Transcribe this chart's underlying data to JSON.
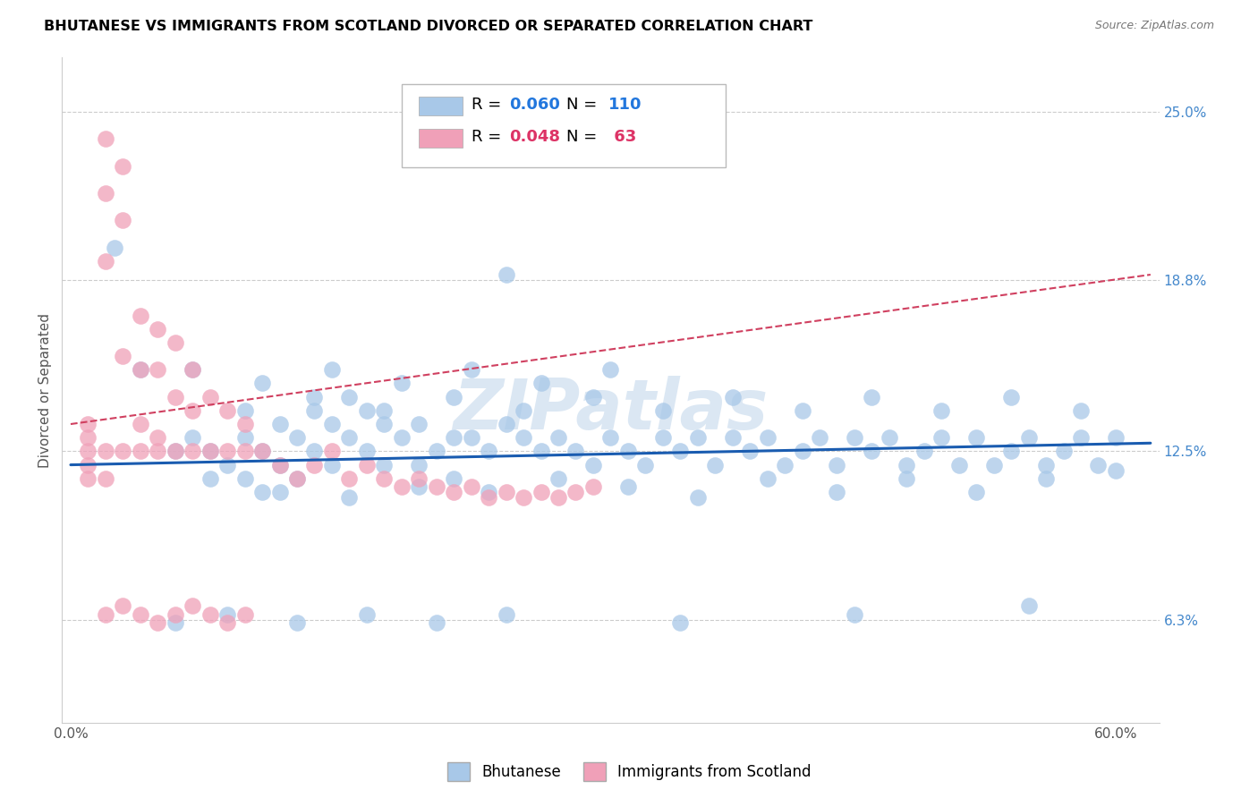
{
  "title": "BHUTANESE VS IMMIGRANTS FROM SCOTLAND DIVORCED OR SEPARATED CORRELATION CHART",
  "source": "Source: ZipAtlas.com",
  "ylabel": "Divorced or Separated",
  "legend_bhutanese": "Bhutanese",
  "legend_scotland": "Immigrants from Scotland",
  "r_bhutanese": 0.06,
  "n_bhutanese": 110,
  "r_scotland": 0.048,
  "n_scotland": 63,
  "blue_color": "#a8c8e8",
  "blue_line_color": "#1a5cb0",
  "pink_color": "#f0a0b8",
  "pink_line_color": "#d04060",
  "watermark": "ZIPatlas",
  "xlim": [
    -0.005,
    0.625
  ],
  "ylim": [
    0.025,
    0.27
  ],
  "bhutanese_x": [
    0.025,
    0.04,
    0.25,
    0.06,
    0.07,
    0.08,
    0.09,
    0.1,
    0.1,
    0.11,
    0.11,
    0.12,
    0.12,
    0.13,
    0.13,
    0.14,
    0.14,
    0.15,
    0.15,
    0.16,
    0.16,
    0.17,
    0.17,
    0.18,
    0.18,
    0.19,
    0.2,
    0.2,
    0.21,
    0.22,
    0.22,
    0.23,
    0.24,
    0.25,
    0.26,
    0.27,
    0.28,
    0.29,
    0.3,
    0.31,
    0.32,
    0.33,
    0.34,
    0.35,
    0.36,
    0.37,
    0.38,
    0.39,
    0.4,
    0.41,
    0.42,
    0.43,
    0.44,
    0.45,
    0.46,
    0.47,
    0.48,
    0.49,
    0.5,
    0.51,
    0.52,
    0.53,
    0.54,
    0.55,
    0.56,
    0.57,
    0.58,
    0.59,
    0.6,
    0.08,
    0.12,
    0.16,
    0.2,
    0.24,
    0.28,
    0.32,
    0.36,
    0.4,
    0.44,
    0.48,
    0.52,
    0.56,
    0.6,
    0.1,
    0.14,
    0.18,
    0.22,
    0.26,
    0.3,
    0.34,
    0.38,
    0.42,
    0.46,
    0.5,
    0.54,
    0.58,
    0.06,
    0.09,
    0.13,
    0.17,
    0.21,
    0.25,
    0.35,
    0.45,
    0.55,
    0.07,
    0.11,
    0.15,
    0.19,
    0.23,
    0.27,
    0.31
  ],
  "bhutanese_y": [
    0.2,
    0.155,
    0.19,
    0.125,
    0.13,
    0.125,
    0.12,
    0.13,
    0.115,
    0.125,
    0.11,
    0.135,
    0.12,
    0.13,
    0.115,
    0.14,
    0.125,
    0.135,
    0.12,
    0.145,
    0.13,
    0.14,
    0.125,
    0.135,
    0.12,
    0.13,
    0.135,
    0.12,
    0.125,
    0.13,
    0.115,
    0.13,
    0.125,
    0.135,
    0.13,
    0.125,
    0.13,
    0.125,
    0.12,
    0.13,
    0.125,
    0.12,
    0.13,
    0.125,
    0.13,
    0.12,
    0.13,
    0.125,
    0.13,
    0.12,
    0.125,
    0.13,
    0.12,
    0.13,
    0.125,
    0.13,
    0.12,
    0.125,
    0.13,
    0.12,
    0.13,
    0.12,
    0.125,
    0.13,
    0.12,
    0.125,
    0.13,
    0.12,
    0.13,
    0.115,
    0.11,
    0.108,
    0.112,
    0.11,
    0.115,
    0.112,
    0.108,
    0.115,
    0.11,
    0.115,
    0.11,
    0.115,
    0.118,
    0.14,
    0.145,
    0.14,
    0.145,
    0.14,
    0.145,
    0.14,
    0.145,
    0.14,
    0.145,
    0.14,
    0.145,
    0.14,
    0.062,
    0.065,
    0.062,
    0.065,
    0.062,
    0.065,
    0.062,
    0.065,
    0.068,
    0.155,
    0.15,
    0.155,
    0.15,
    0.155,
    0.15,
    0.155
  ],
  "scotland_x": [
    0.01,
    0.01,
    0.01,
    0.01,
    0.01,
    0.02,
    0.02,
    0.02,
    0.02,
    0.02,
    0.03,
    0.03,
    0.03,
    0.03,
    0.04,
    0.04,
    0.04,
    0.04,
    0.05,
    0.05,
    0.05,
    0.05,
    0.06,
    0.06,
    0.06,
    0.07,
    0.07,
    0.07,
    0.08,
    0.08,
    0.09,
    0.09,
    0.1,
    0.1,
    0.11,
    0.12,
    0.13,
    0.14,
    0.15,
    0.16,
    0.17,
    0.18,
    0.19,
    0.2,
    0.21,
    0.22,
    0.23,
    0.24,
    0.25,
    0.26,
    0.27,
    0.28,
    0.29,
    0.3,
    0.02,
    0.03,
    0.04,
    0.05,
    0.06,
    0.07,
    0.08,
    0.09,
    0.1
  ],
  "scotland_y": [
    0.125,
    0.13,
    0.12,
    0.135,
    0.115,
    0.24,
    0.22,
    0.195,
    0.125,
    0.115,
    0.23,
    0.21,
    0.16,
    0.125,
    0.175,
    0.155,
    0.135,
    0.125,
    0.17,
    0.155,
    0.13,
    0.125,
    0.165,
    0.145,
    0.125,
    0.155,
    0.14,
    0.125,
    0.145,
    0.125,
    0.14,
    0.125,
    0.135,
    0.125,
    0.125,
    0.12,
    0.115,
    0.12,
    0.125,
    0.115,
    0.12,
    0.115,
    0.112,
    0.115,
    0.112,
    0.11,
    0.112,
    0.108,
    0.11,
    0.108,
    0.11,
    0.108,
    0.11,
    0.112,
    0.065,
    0.068,
    0.065,
    0.062,
    0.065,
    0.068,
    0.065,
    0.062,
    0.065
  ]
}
